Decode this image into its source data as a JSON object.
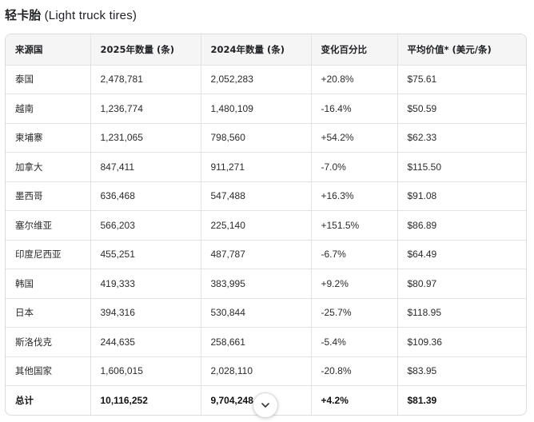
{
  "title": {
    "zh": "轻卡胎",
    "en": "(Light truck tires)"
  },
  "table": {
    "headers": [
      "来源国",
      "2025年数量 (条)",
      "2024年数量 (条)",
      "变化百分比",
      "平均价值* (美元/条)"
    ],
    "rows": [
      [
        "泰国",
        "2,478,781",
        "2,052,283",
        "+20.8%",
        "$75.61"
      ],
      [
        "越南",
        "1,236,774",
        "1,480,109",
        "-16.4%",
        "$50.59"
      ],
      [
        "柬埔寨",
        "1,231,065",
        "798,560",
        "+54.2%",
        "$62.33"
      ],
      [
        "加拿大",
        "847,411",
        "911,271",
        "-7.0%",
        "$115.50"
      ],
      [
        "墨西哥",
        "636,468",
        "547,488",
        "+16.3%",
        "$91.08"
      ],
      [
        "塞尔维亚",
        "566,203",
        "225,140",
        "+151.5%",
        "$86.89"
      ],
      [
        "印度尼西亚",
        "455,251",
        "487,787",
        "-6.7%",
        "$64.49"
      ],
      [
        "韩国",
        "419,333",
        "383,995",
        "+9.2%",
        "$80.97"
      ],
      [
        "日本",
        "394,316",
        "530,844",
        "-25.7%",
        "$118.95"
      ],
      [
        "斯洛伐克",
        "244,635",
        "258,661",
        "-5.4%",
        "$109.36"
      ],
      [
        "其他国家",
        "1,606,015",
        "2,028,110",
        "-20.8%",
        "$83.95"
      ]
    ],
    "total": [
      "总计",
      "10,116,252",
      "9,704,248",
      "+4.2%",
      "$81.39"
    ]
  },
  "scroll_button": {
    "icon": "chevron-down-icon"
  }
}
